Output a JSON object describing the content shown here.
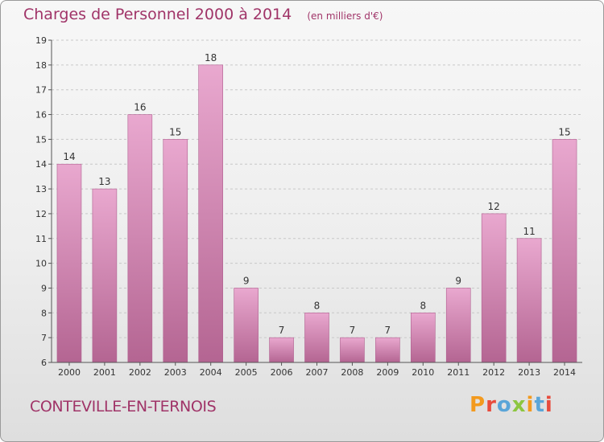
{
  "title": "Charges de Personnel 2000 à 2014",
  "subtitle": "(en milliers d'€)",
  "place": "CONTEVILLE-EN-TERNOIS",
  "logo": {
    "text": "Proxiti",
    "colors": [
      "#f39a1e",
      "#5aa5d8",
      "#8cc63f",
      "#e84c3d"
    ]
  },
  "colors": {
    "bar_top": "#e9a8cf",
    "bar_bottom": "#b46592",
    "text": "#a03468"
  },
  "chart_data": {
    "type": "bar",
    "title": "Charges de Personnel 2000 à 2014",
    "subtitle": "(en milliers d'€)",
    "xlabel": "",
    "ylabel": "",
    "categories": [
      "2000",
      "2001",
      "2002",
      "2003",
      "2004",
      "2005",
      "2006",
      "2007",
      "2008",
      "2009",
      "2010",
      "2011",
      "2012",
      "2013",
      "2014"
    ],
    "values": [
      14,
      13,
      16,
      15,
      18,
      9,
      7,
      8,
      7,
      7,
      8,
      9,
      12,
      11,
      15
    ],
    "ylim": [
      6,
      19
    ],
    "yticks": [
      6,
      7,
      8,
      9,
      10,
      11,
      12,
      13,
      14,
      15,
      16,
      17,
      18,
      19
    ],
    "grid": "horizontal-dashed",
    "legend": "none"
  }
}
